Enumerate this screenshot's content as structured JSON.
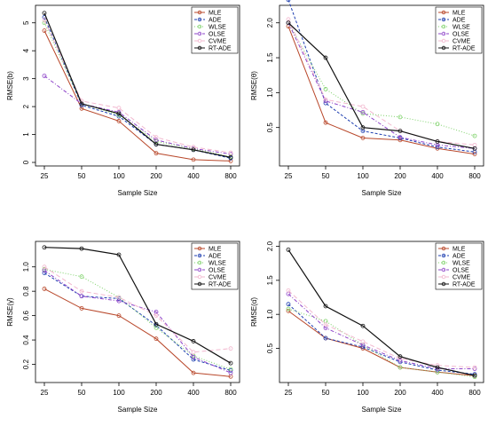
{
  "chart_data": [
    {
      "type": "line",
      "ylabel": "RMSE(b)",
      "xlabel": "Sample Size",
      "categories": [
        "25",
        "50",
        "100",
        "200",
        "400",
        "800"
      ],
      "ylim": [
        0,
        5.5
      ],
      "yticks": [
        0,
        1,
        2,
        3,
        4,
        5
      ],
      "legend_position": "top-right",
      "series": [
        {
          "name": "MLE",
          "color": "#b8472a",
          "values": [
            4.72,
            1.93,
            1.48,
            0.33,
            0.1,
            0.05
          ]
        },
        {
          "name": "ADE",
          "color": "#1f3fb0",
          "values": [
            5.2,
            2.05,
            1.65,
            0.65,
            0.45,
            0.15
          ]
        },
        {
          "name": "WLSE",
          "color": "#7ed26a",
          "values": [
            5.0,
            2.1,
            1.7,
            0.75,
            0.48,
            0.2
          ]
        },
        {
          "name": "OLSE",
          "color": "#8e44c9",
          "values": [
            3.1,
            2.1,
            1.8,
            0.8,
            0.5,
            0.3
          ]
        },
        {
          "name": "CVME",
          "color": "#f2b8cf",
          "values": [
            5.1,
            2.2,
            1.95,
            0.9,
            0.55,
            0.35
          ]
        },
        {
          "name": "RT-ADE",
          "color": "#111111",
          "values": [
            5.35,
            2.1,
            1.75,
            0.65,
            0.45,
            0.18
          ]
        }
      ]
    },
    {
      "type": "line",
      "ylabel": "RMSE(θ)",
      "xlabel": "Sample Size",
      "categories": [
        "25",
        "50",
        "100",
        "200",
        "400",
        "800"
      ],
      "ylim": [
        0,
        2.2
      ],
      "yticks": [
        0.5,
        1.0,
        1.5,
        2.0
      ],
      "ytick_labels": [
        "0.5",
        "1.0",
        "1.5",
        "2.0"
      ],
      "legend_position": "top-right",
      "series": [
        {
          "name": "MLE",
          "color": "#b8472a",
          "values": [
            1.95,
            0.57,
            0.35,
            0.32,
            0.2,
            0.12
          ]
        },
        {
          "name": "ADE",
          "color": "#1f3fb0",
          "values": [
            2.33,
            0.85,
            0.45,
            0.35,
            0.22,
            0.15
          ]
        },
        {
          "name": "WLSE",
          "color": "#7ed26a",
          "values": [
            2.0,
            1.05,
            0.7,
            0.65,
            0.55,
            0.38
          ]
        },
        {
          "name": "OLSE",
          "color": "#8e44c9",
          "values": [
            2.0,
            0.88,
            0.72,
            0.36,
            0.25,
            0.2
          ]
        },
        {
          "name": "CVME",
          "color": "#f2b8cf",
          "values": [
            2.05,
            0.9,
            0.8,
            0.45,
            0.3,
            0.25
          ]
        },
        {
          "name": "RT-ADE",
          "color": "#111111",
          "values": [
            2.0,
            1.5,
            0.5,
            0.45,
            0.3,
            0.2
          ]
        }
      ]
    },
    {
      "type": "line",
      "ylabel": "RMSE(γ̂)",
      "xlabel": "Sample Size",
      "categories": [
        "25",
        "50",
        "100",
        "200",
        "400",
        "800"
      ],
      "ylim": [
        0.08,
        1.18
      ],
      "yticks": [
        0.2,
        0.4,
        0.6,
        0.8,
        1.0
      ],
      "ytick_labels": [
        "0.2",
        "0.4",
        "0.6",
        "0.8",
        "1.0"
      ],
      "legend_position": "top-right",
      "series": [
        {
          "name": "MLE",
          "color": "#b8472a",
          "values": [
            0.82,
            0.66,
            0.6,
            0.41,
            0.13,
            0.1
          ]
        },
        {
          "name": "ADE",
          "color": "#1f3fb0",
          "values": [
            0.95,
            0.76,
            0.74,
            0.52,
            0.24,
            0.15
          ]
        },
        {
          "name": "WLSE",
          "color": "#7ed26a",
          "values": [
            0.98,
            0.92,
            0.75,
            0.5,
            0.27,
            0.16
          ]
        },
        {
          "name": "OLSE",
          "color": "#8e44c9",
          "values": [
            0.97,
            0.76,
            0.72,
            0.63,
            0.26,
            0.13
          ]
        },
        {
          "name": "CVME",
          "color": "#f2b8cf",
          "values": [
            1.0,
            0.8,
            0.75,
            0.6,
            0.3,
            0.33
          ]
        },
        {
          "name": "RT-ADE",
          "color": "#111111",
          "values": [
            1.16,
            1.15,
            1.1,
            0.53,
            0.39,
            0.21
          ]
        }
      ]
    },
    {
      "type": "line",
      "ylabel": "RMSE(α̂)",
      "xlabel": "Sample Size",
      "categories": [
        "25",
        "50",
        "100",
        "200",
        "400",
        "800"
      ],
      "ylim": [
        0.05,
        2.02
      ],
      "yticks": [
        0.5,
        1.0,
        1.5,
        2.0
      ],
      "ytick_labels": [
        "0.5",
        "1.0",
        "1.5",
        "2.0"
      ],
      "legend_position": "top-right",
      "series": [
        {
          "name": "MLE",
          "color": "#b8472a",
          "values": [
            1.05,
            0.65,
            0.5,
            0.22,
            0.15,
            0.1
          ]
        },
        {
          "name": "ADE",
          "color": "#1f3fb0",
          "values": [
            1.15,
            0.65,
            0.52,
            0.3,
            0.18,
            0.12
          ]
        },
        {
          "name": "WLSE",
          "color": "#7ed26a",
          "values": [
            1.08,
            0.9,
            0.55,
            0.22,
            0.15,
            0.08
          ]
        },
        {
          "name": "OLSE",
          "color": "#8e44c9",
          "values": [
            1.3,
            0.8,
            0.55,
            0.32,
            0.2,
            0.2
          ]
        },
        {
          "name": "CVME",
          "color": "#f2b8cf",
          "values": [
            1.35,
            0.85,
            0.6,
            0.35,
            0.25,
            0.22
          ]
        },
        {
          "name": "RT-ADE",
          "color": "#111111",
          "values": [
            1.95,
            1.12,
            0.83,
            0.38,
            0.22,
            0.1
          ]
        }
      ]
    }
  ]
}
